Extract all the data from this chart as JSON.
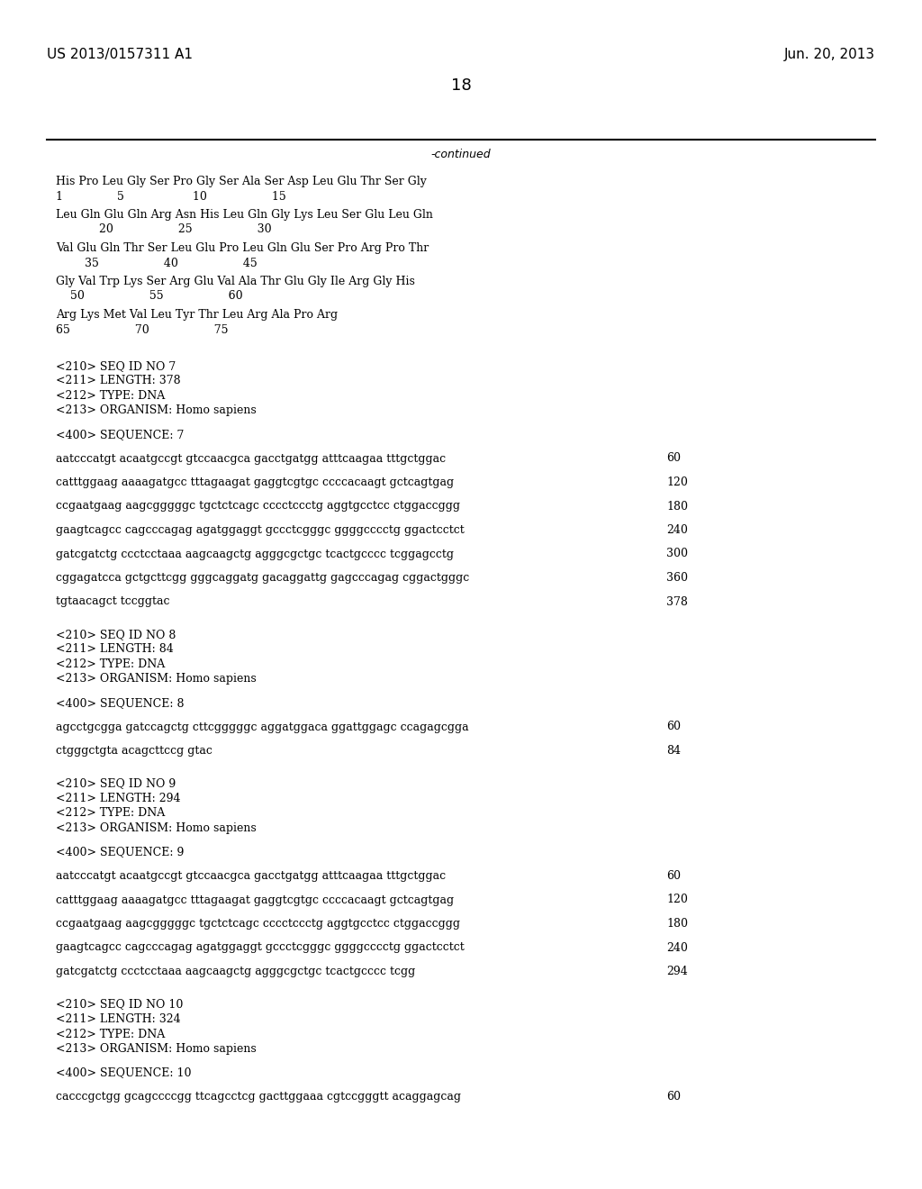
{
  "background_color": "#ffffff",
  "header_left": "US 2013/0157311 A1",
  "header_right": "Jun. 20, 2013",
  "page_number": "18",
  "continued_label": "-continued",
  "content": [
    {
      "type": "aa_seq",
      "line": "His Pro Leu Gly Ser Pro Gly Ser Ala Ser Asp Leu Glu Thr Ser Gly",
      "nums": "1               5                   10                  15"
    },
    {
      "type": "aa_seq",
      "line": "Leu Gln Glu Gln Arg Asn His Leu Gln Gly Lys Leu Ser Glu Leu Gln",
      "nums": "            20                  25                  30"
    },
    {
      "type": "aa_seq",
      "line": "Val Glu Gln Thr Ser Leu Glu Pro Leu Gln Glu Ser Pro Arg Pro Thr",
      "nums": "        35                  40                  45"
    },
    {
      "type": "aa_seq",
      "line": "Gly Val Trp Lys Ser Arg Glu Val Ala Thr Glu Gly Ile Arg Gly His",
      "nums": "    50                  55                  60"
    },
    {
      "type": "aa_seq",
      "line": "Arg Lys Met Val Leu Tyr Thr Leu Arg Ala Pro Arg",
      "nums": "65                  70                  75"
    },
    {
      "type": "blank"
    },
    {
      "type": "blank"
    },
    {
      "type": "seq_header",
      "lines": [
        "<210> SEQ ID NO 7",
        "<211> LENGTH: 378",
        "<212> TYPE: DNA",
        "<213> ORGANISM: Homo sapiens"
      ]
    },
    {
      "type": "blank"
    },
    {
      "type": "seq_label",
      "line": "<400> SEQUENCE: 7"
    },
    {
      "type": "blank"
    },
    {
      "type": "dna_seq",
      "line": "aatcccatgt acaatgccgt gtccaacgca gacctgatgg atttcaagaa tttgctggac",
      "num": "60"
    },
    {
      "type": "blank"
    },
    {
      "type": "dna_seq",
      "line": "catttggaag aaaagatgcc tttagaagat gaggtcgtgc ccccacaagt gctcagtgag",
      "num": "120"
    },
    {
      "type": "blank"
    },
    {
      "type": "dna_seq",
      "line": "ccgaatgaag aagcgggggc tgctctcagc cccctccctg aggtgcctcc ctggaccggg",
      "num": "180"
    },
    {
      "type": "blank"
    },
    {
      "type": "dna_seq",
      "line": "gaagtcagcc cagcccagag agatggaggt gccctcgggc ggggcccctg ggactcctct",
      "num": "240"
    },
    {
      "type": "blank"
    },
    {
      "type": "dna_seq",
      "line": "gatcgatctg ccctcctaaa aagcaagctg agggcgctgc tcactgcccc tcggagcctg",
      "num": "300"
    },
    {
      "type": "blank"
    },
    {
      "type": "dna_seq",
      "line": "cggagatcca gctgcttcgg gggcaggatg gacaggattg gagcccagag cggactgggc",
      "num": "360"
    },
    {
      "type": "blank"
    },
    {
      "type": "dna_seq",
      "line": "tgtaacagct tccggtac",
      "num": "378"
    },
    {
      "type": "blank"
    },
    {
      "type": "blank"
    },
    {
      "type": "seq_header",
      "lines": [
        "<210> SEQ ID NO 8",
        "<211> LENGTH: 84",
        "<212> TYPE: DNA",
        "<213> ORGANISM: Homo sapiens"
      ]
    },
    {
      "type": "blank"
    },
    {
      "type": "seq_label",
      "line": "<400> SEQUENCE: 8"
    },
    {
      "type": "blank"
    },
    {
      "type": "dna_seq",
      "line": "agcctgcgga gatccagctg cttcgggggc aggatggaca ggattggagc ccagagcgga",
      "num": "60"
    },
    {
      "type": "blank"
    },
    {
      "type": "dna_seq",
      "line": "ctgggctgta acagcttccg gtac",
      "num": "84"
    },
    {
      "type": "blank"
    },
    {
      "type": "blank"
    },
    {
      "type": "seq_header",
      "lines": [
        "<210> SEQ ID NO 9",
        "<211> LENGTH: 294",
        "<212> TYPE: DNA",
        "<213> ORGANISM: Homo sapiens"
      ]
    },
    {
      "type": "blank"
    },
    {
      "type": "seq_label",
      "line": "<400> SEQUENCE: 9"
    },
    {
      "type": "blank"
    },
    {
      "type": "dna_seq",
      "line": "aatcccatgt acaatgccgt gtccaacgca gacctgatgg atttcaagaa tttgctggac",
      "num": "60"
    },
    {
      "type": "blank"
    },
    {
      "type": "dna_seq",
      "line": "catttggaag aaaagatgcc tttagaagat gaggtcgtgc ccccacaagt gctcagtgag",
      "num": "120"
    },
    {
      "type": "blank"
    },
    {
      "type": "dna_seq",
      "line": "ccgaatgaag aagcgggggc tgctctcagc cccctccctg aggtgcctcc ctggaccggg",
      "num": "180"
    },
    {
      "type": "blank"
    },
    {
      "type": "dna_seq",
      "line": "gaagtcagcc cagcccagag agatggaggt gccctcgggc ggggcccctg ggactcctct",
      "num": "240"
    },
    {
      "type": "blank"
    },
    {
      "type": "dna_seq",
      "line": "gatcgatctg ccctcctaaa aagcaagctg agggcgctgc tcactgcccc tcgg",
      "num": "294"
    },
    {
      "type": "blank"
    },
    {
      "type": "blank"
    },
    {
      "type": "seq_header",
      "lines": [
        "<210> SEQ ID NO 10",
        "<211> LENGTH: 324",
        "<212> TYPE: DNA",
        "<213> ORGANISM: Homo sapiens"
      ]
    },
    {
      "type": "blank"
    },
    {
      "type": "seq_label",
      "line": "<400> SEQUENCE: 10"
    },
    {
      "type": "blank"
    },
    {
      "type": "dna_seq",
      "line": "cacccgctgg gcagccccgg ttcagcctcg gacttggaaa cgtccgggtt acaggagcag",
      "num": "60"
    }
  ]
}
